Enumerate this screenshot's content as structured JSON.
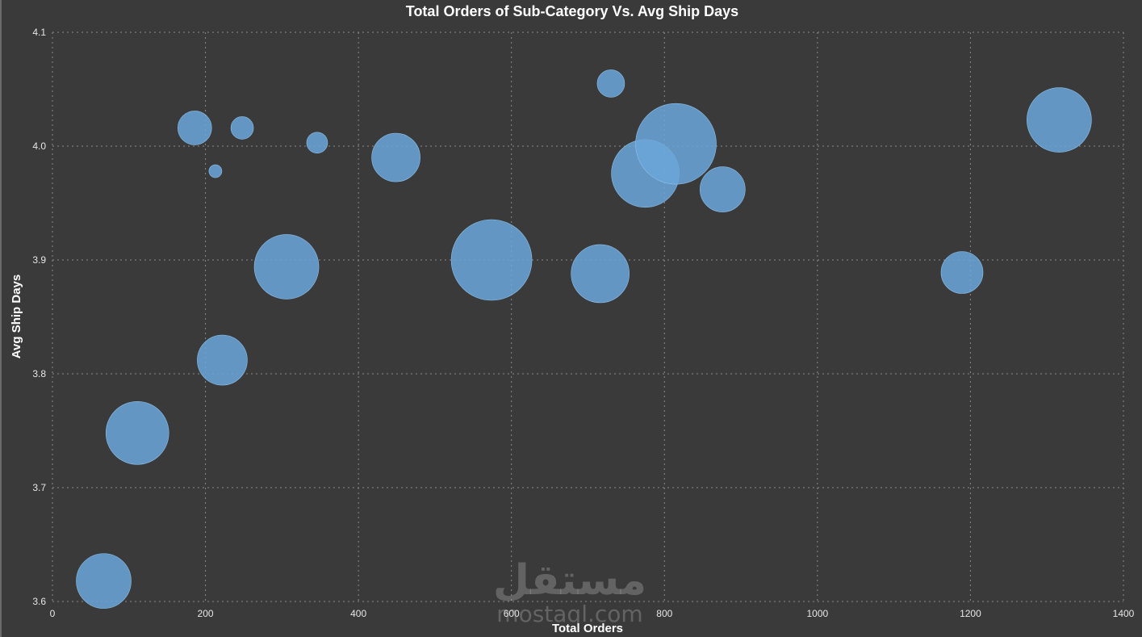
{
  "chart_data": {
    "type": "scatter",
    "variant": "bubble",
    "title": "Total Orders of Sub-Category Vs. Avg Ship Days",
    "xlabel": "Total Orders",
    "ylabel": "Avg Ship Days",
    "xlim": [
      0,
      1400
    ],
    "ylim": [
      3.6,
      4.1
    ],
    "xticks": [
      "0",
      "200",
      "400",
      "600",
      "800",
      "1000",
      "1200",
      "1400"
    ],
    "yticks": [
      "3.6",
      "3.7",
      "3.8",
      "3.9",
      "4.0",
      "4.1"
    ],
    "grid": true,
    "bubble_color": "#6ba7db",
    "points": [
      {
        "x": 67,
        "y": 3.618,
        "size": 34
      },
      {
        "x": 111,
        "y": 3.748,
        "size": 39
      },
      {
        "x": 186,
        "y": 4.016,
        "size": 21
      },
      {
        "x": 213,
        "y": 3.978,
        "size": 8
      },
      {
        "x": 222,
        "y": 3.812,
        "size": 31
      },
      {
        "x": 248,
        "y": 4.016,
        "size": 14
      },
      {
        "x": 306,
        "y": 3.894,
        "size": 40
      },
      {
        "x": 346,
        "y": 4.003,
        "size": 13
      },
      {
        "x": 449,
        "y": 3.99,
        "size": 30
      },
      {
        "x": 574,
        "y": 3.9,
        "size": 50
      },
      {
        "x": 716,
        "y": 3.888,
        "size": 36
      },
      {
        "x": 730,
        "y": 4.055,
        "size": 17
      },
      {
        "x": 775,
        "y": 3.976,
        "size": 42
      },
      {
        "x": 815,
        "y": 4.002,
        "size": 50
      },
      {
        "x": 876,
        "y": 3.962,
        "size": 28
      },
      {
        "x": 1189,
        "y": 3.889,
        "size": 26
      },
      {
        "x": 1316,
        "y": 4.023,
        "size": 40
      }
    ]
  },
  "watermark": {
    "text_ar": "مستقل",
    "text_en": "mostaql.com"
  }
}
